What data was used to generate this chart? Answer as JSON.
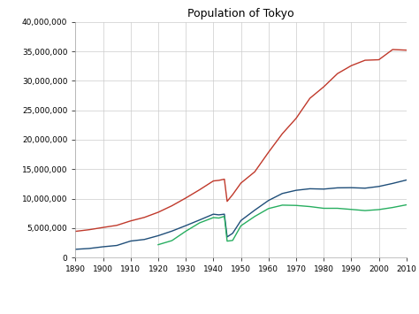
{
  "title": "Population of Tokyo",
  "background_color": "#ffffff",
  "grid_color": "#cccccc",
  "series": {
    "tokyo_to": {
      "color": "#1f4e79",
      "years": [
        1890,
        1895,
        1900,
        1905,
        1910,
        1915,
        1920,
        1925,
        1930,
        1935,
        1940,
        1942,
        1944,
        1945,
        1947,
        1950,
        1955,
        1960,
        1965,
        1970,
        1975,
        1980,
        1985,
        1990,
        1995,
        2000,
        2005,
        2010
      ],
      "values": [
        1390000,
        1530000,
        1820000,
        2040000,
        2790000,
        3060000,
        3700000,
        4485000,
        5408000,
        6369000,
        7355000,
        7240000,
        7358000,
        3490000,
        4110000,
        6278000,
        8038000,
        9684000,
        10869000,
        11409000,
        11674000,
        11618000,
        11829000,
        11855000,
        11772000,
        12064000,
        12577000,
        13159000
      ]
    },
    "greater_tokyo": {
      "color": "#c0392b",
      "years": [
        1890,
        1895,
        1900,
        1905,
        1910,
        1915,
        1920,
        1925,
        1930,
        1935,
        1940,
        1942,
        1944,
        1945,
        1947,
        1950,
        1955,
        1960,
        1965,
        1970,
        1975,
        1980,
        1985,
        1990,
        1995,
        2000,
        2005,
        2010
      ],
      "values": [
        4440000,
        4720000,
        5100000,
        5460000,
        6210000,
        6810000,
        7680000,
        8790000,
        10100000,
        11500000,
        13000000,
        13100000,
        13300000,
        9530000,
        10680000,
        12640000,
        14550000,
        17870000,
        21017000,
        23630000,
        27040000,
        28980000,
        31230000,
        32580000,
        33500000,
        33587000,
        35320000,
        35217000
      ]
    },
    "ku_area": {
      "color": "#27ae60",
      "years": [
        1920,
        1925,
        1930,
        1935,
        1940,
        1942,
        1944,
        1945,
        1947,
        1950,
        1955,
        1960,
        1965,
        1970,
        1975,
        1980,
        1985,
        1990,
        1995,
        2000,
        2005,
        2010
      ],
      "values": [
        2173000,
        2870000,
        4461000,
        5876000,
        6779000,
        6700000,
        6990000,
        2777000,
        2900000,
        5385000,
        6969000,
        8310000,
        8893000,
        8841000,
        8647000,
        8352000,
        8354000,
        8163000,
        7967000,
        8134000,
        8490000,
        8945000
      ]
    }
  },
  "xlim": [
    1890,
    2010
  ],
  "ylim": [
    0,
    40000000
  ],
  "yticks": [
    0,
    5000000,
    10000000,
    15000000,
    20000000,
    25000000,
    30000000,
    35000000,
    40000000
  ],
  "xticks": [
    1890,
    1900,
    1910,
    1920,
    1930,
    1940,
    1950,
    1960,
    1970,
    1980,
    1990,
    2000,
    2010
  ],
  "title_fontsize": 9,
  "tick_fontsize": 6.5,
  "legend_fontsize": 7,
  "linewidth": 1.0
}
